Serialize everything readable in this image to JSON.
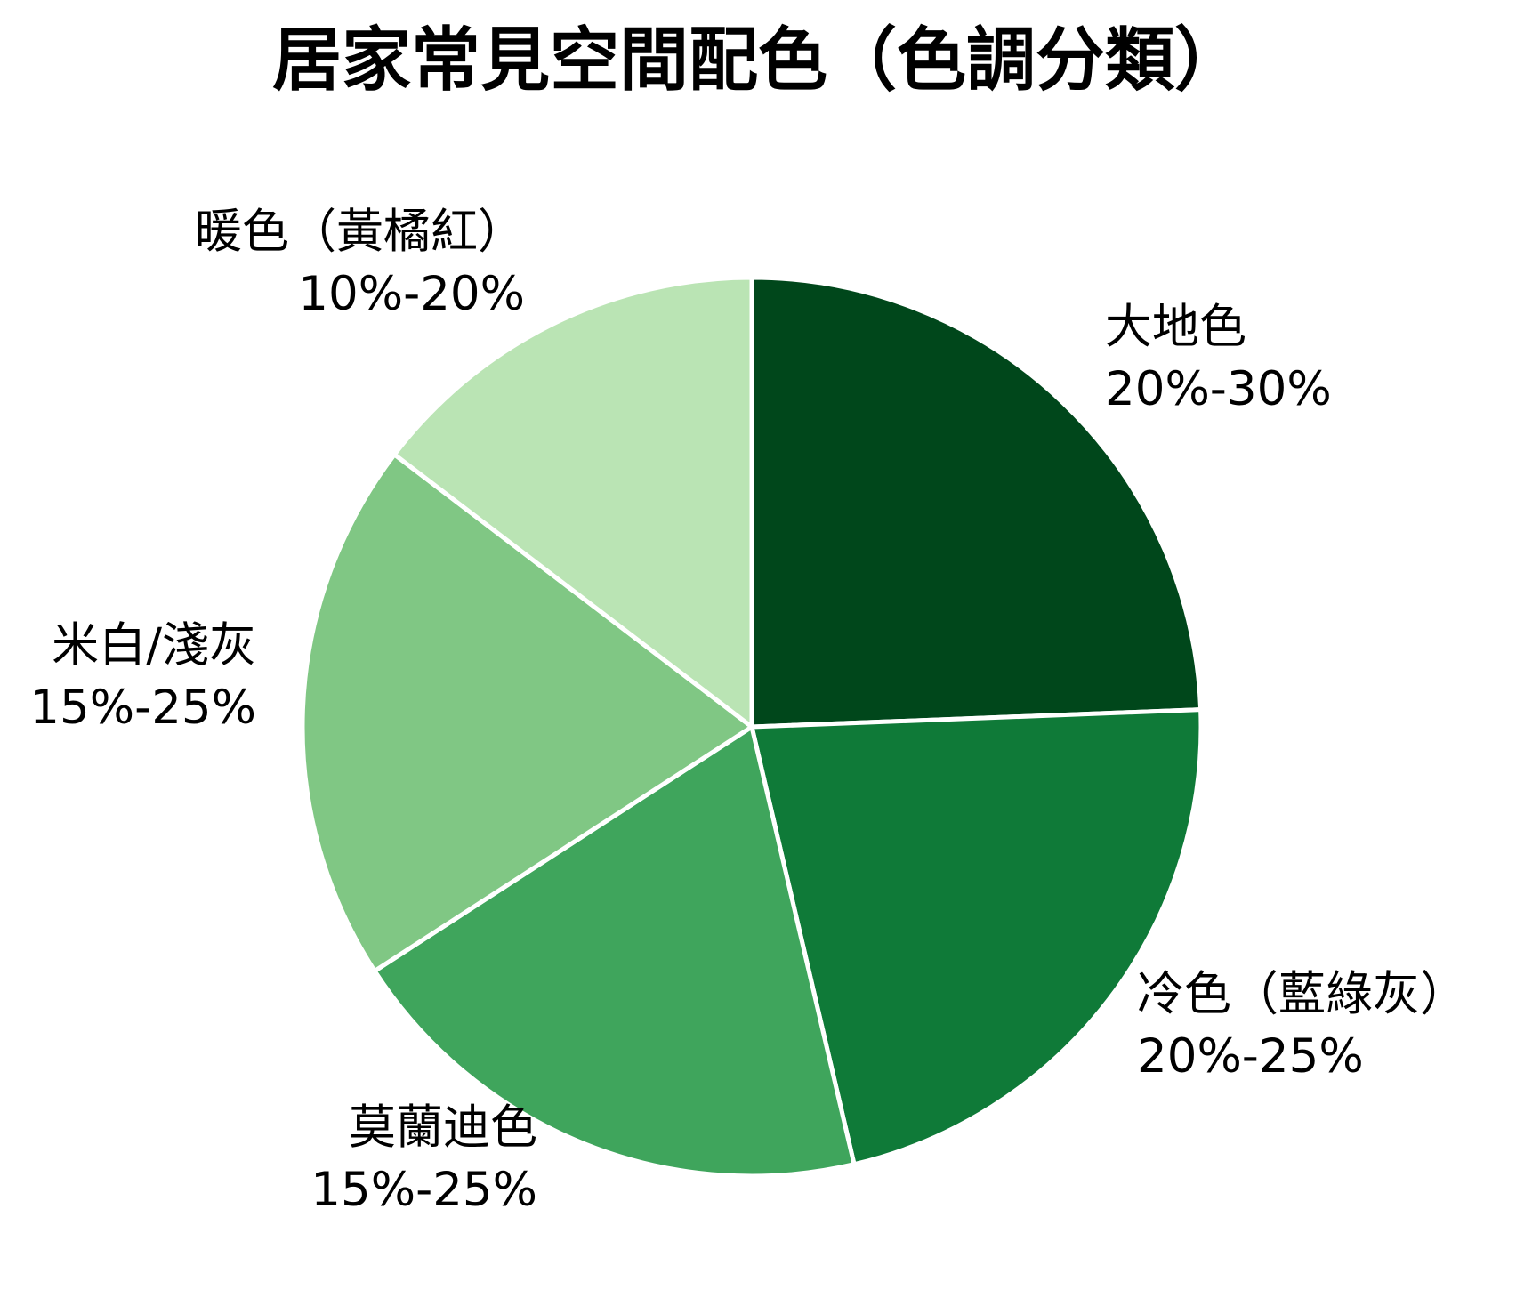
{
  "chart_data": {
    "type": "pie",
    "title": "居家常見空間配色（色調分類）",
    "start": "top",
    "direction": "clockwise",
    "slices": [
      {
        "name": "大地色",
        "range_label": "20%-30%",
        "value": 25,
        "color": "#00471b"
      },
      {
        "name": "冷色（藍綠灰）",
        "range_label": "20%-25%",
        "value": 22.5,
        "color": "#0f7a38"
      },
      {
        "name": "莫蘭迪色",
        "range_label": "15%-25%",
        "value": 20,
        "color": "#3fa55c"
      },
      {
        "name": "米白/淺灰",
        "range_label": "15%-25%",
        "value": 20,
        "color": "#80c784"
      },
      {
        "name": "暖色（黃橘紅）",
        "range_label": "10%-20%",
        "value": 15,
        "color": "#bae4b4"
      }
    ]
  }
}
